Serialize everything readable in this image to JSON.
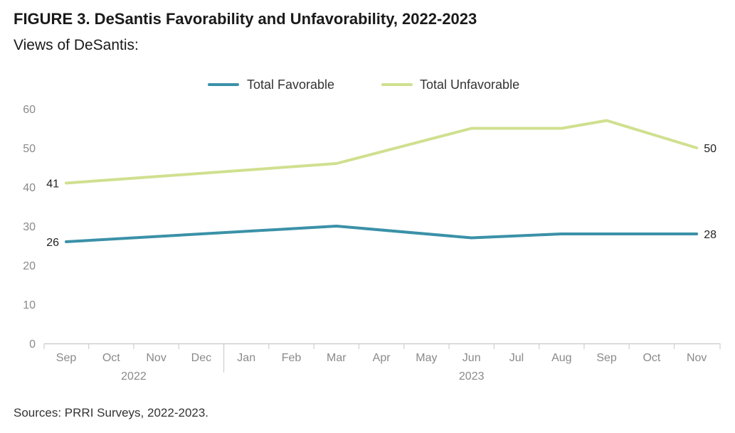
{
  "figure": {
    "title": "FIGURE 3. DeSantis Favorability and Unfavorability, 2022-2023",
    "subtitle": "Views of DeSantis:",
    "sources": "Sources: PRRI Surveys, 2022-2023."
  },
  "chart_data": {
    "type": "line",
    "categories": [
      "Sep",
      "Oct",
      "Nov",
      "Dec",
      "Jan",
      "Feb",
      "Mar",
      "Apr",
      "May",
      "Jun",
      "Jul",
      "Aug",
      "Sep",
      "Oct",
      "Nov"
    ],
    "year_groups": [
      {
        "label": "2022",
        "start": 0,
        "end": 3
      },
      {
        "label": "2023",
        "start": 4,
        "end": 14
      }
    ],
    "series": [
      {
        "name": "Total Favorable",
        "color": "#3a91a8",
        "points": [
          [
            0,
            26
          ],
          [
            6,
            30
          ],
          [
            9,
            27
          ],
          [
            11,
            28
          ],
          [
            14,
            28
          ]
        ],
        "labels": {
          "first": "26",
          "last": "28"
        }
      },
      {
        "name": "Total Unfavorable",
        "color": "#cfe08f",
        "points": [
          [
            0,
            41
          ],
          [
            6,
            46
          ],
          [
            9,
            55
          ],
          [
            11,
            55
          ],
          [
            12,
            57
          ],
          [
            14,
            50
          ]
        ],
        "labels": {
          "first": "41",
          "last": "50"
        }
      }
    ],
    "yticks": [
      "0",
      "10",
      "20",
      "30",
      "40",
      "50",
      "60"
    ],
    "ylim": [
      0,
      60
    ],
    "legend_position": "top-center",
    "grid": false
  }
}
